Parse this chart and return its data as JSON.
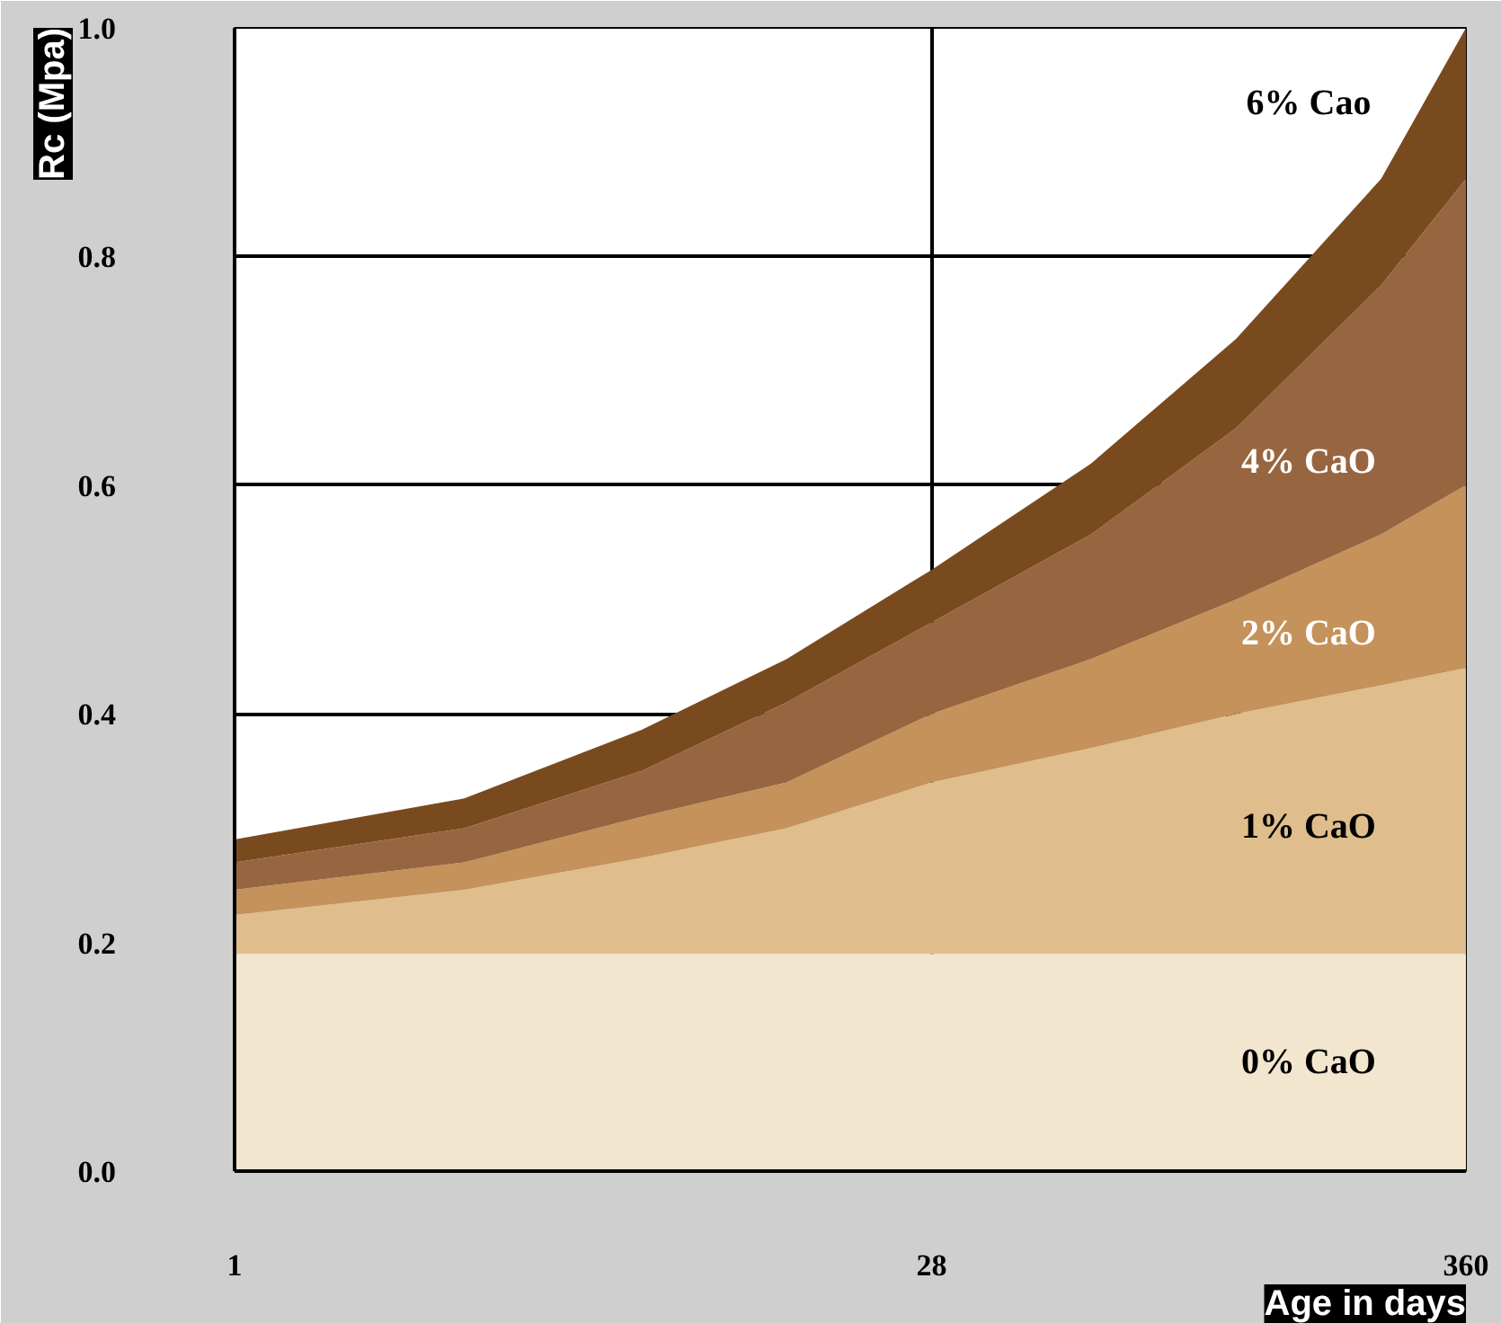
{
  "chart_data": {
    "type": "area",
    "stacked": true,
    "xlabel": "Age in days",
    "ylabel": "Rc (Mpa)",
    "log": "x",
    "x": [
      1,
      3,
      7,
      14,
      28,
      60,
      120,
      240,
      360
    ],
    "xlim": [
      1,
      360
    ],
    "xticks": [
      1,
      28,
      360
    ],
    "ylim": [
      0,
      1.0
    ],
    "yticks": [
      {
        "value": 0,
        "label": "0.0"
      },
      0.2,
      0.4,
      0.6,
      0.8,
      {
        "value": 1.0,
        "label": "1.0"
      }
    ],
    "grid": true,
    "legend": false,
    "series": [
      {
        "name": "0% CaO",
        "color": "#f2e6cf",
        "values": [
          0.19,
          0.19,
          0.19,
          0.19,
          0.19,
          0.19,
          0.19,
          0.19,
          0.19
        ]
      },
      {
        "name": "1% CaO",
        "color": "#dfbd8c",
        "values": [
          0.034,
          0.056,
          0.084,
          0.11,
          0.15,
          0.18,
          0.21,
          0.235,
          0.25
        ]
      },
      {
        "name": "2% CaO",
        "color": "#c4925a",
        "values": [
          0.022,
          0.024,
          0.036,
          0.04,
          0.06,
          0.078,
          0.1,
          0.132,
          0.16
        ]
      },
      {
        "name": "4% CaO",
        "color": "#976640",
        "values": [
          0.024,
          0.03,
          0.04,
          0.07,
          0.08,
          0.109,
          0.15,
          0.218,
          0.268
        ]
      },
      {
        "name": "6% Cao",
        "color": "#7a4a1f",
        "values": [
          0.02,
          0.026,
          0.036,
          0.038,
          0.046,
          0.062,
          0.078,
          0.093,
          0.132
        ]
      }
    ]
  }
}
